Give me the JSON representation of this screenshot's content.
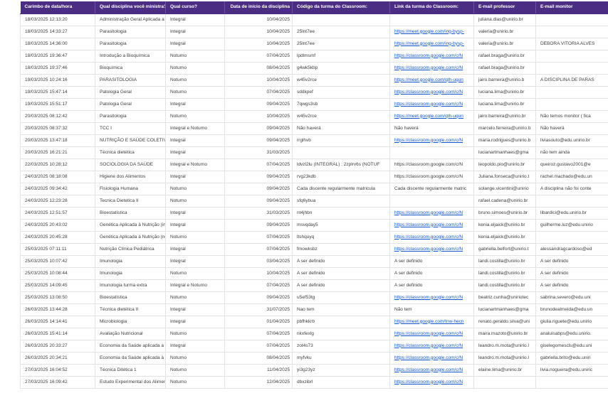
{
  "theme": {
    "bg": "#ffffff",
    "header_bg": "#4b2e83",
    "header_separator": "#6b51a3",
    "header_text": "#ffffff",
    "body_text": "#3d3d3d",
    "link": "#1155cc",
    "grid": "#e3e3e3"
  },
  "table": {
    "columns": [
      {
        "key": "timestamp",
        "label": "Carimbo de data/hora",
        "align": "left"
      },
      {
        "key": "disciplina",
        "label": "Qual disciplina você ministra?",
        "align": "left"
      },
      {
        "key": "curso",
        "label": "Qual curso?",
        "align": "left"
      },
      {
        "key": "inicio",
        "label": "Data de início da disciplina",
        "align": "right"
      },
      {
        "key": "codigo",
        "label": "Código da turma do Classroom:",
        "align": "left"
      },
      {
        "key": "link",
        "label": "Link da turma do Classroom:",
        "align": "left"
      },
      {
        "key": "email_prof",
        "label": "E-mail professor",
        "align": "left"
      },
      {
        "key": "email_monitor",
        "label": "E-mail monitor",
        "align": "left"
      }
    ],
    "rows": [
      {
        "timestamp": "18/03/2025 12:13:20",
        "disciplina": "Administração Geral Aplicada a Nutr",
        "curso": "Integral",
        "inicio": "10/04/2025",
        "codigo": "",
        "link": "",
        "link_is_url": false,
        "email_prof": "juliana.dias@unirio.br",
        "email_monitor": ""
      },
      {
        "timestamp": "18/03/2025 14:33:27",
        "disciplina": "Parasitologia",
        "curso": "Integral",
        "inicio": "10/04/2025",
        "codigo": "25lnt7ee",
        "link": "https://meet.google.com/ing-bysp-",
        "link_is_url": true,
        "email_prof": "valeria@unirio.br",
        "email_monitor": ""
      },
      {
        "timestamp": "18/03/2025 14:36:00",
        "disciplina": "Parasitologia",
        "curso": "Integral",
        "inicio": "10/04/2025",
        "codigo": "25lnt7ee",
        "link": "https://meet.google.com/ing-bysp-",
        "link_is_url": true,
        "email_prof": "valeria@unirio.br",
        "email_monitor": "DEBORA VITORIA ALVES"
      },
      {
        "timestamp": "18/03/2025 19:36:47",
        "disciplina": "Introdução a Bioquímica",
        "curso": "Noturno",
        "inicio": "07/04/2025",
        "codigo": "lpdlmsmf",
        "link": "https://classroom.google.com/c/N",
        "link_is_url": true,
        "email_prof": "rafael.braga@unirio.br",
        "email_monitor": ""
      },
      {
        "timestamp": "18/03/2025 19:37:46",
        "disciplina": "Bioquímica",
        "curso": "Noturno",
        "inicio": "08/04/2025",
        "codigo": "g4wk5kbp",
        "link": "https://classroom.google.com/c/N",
        "link_is_url": true,
        "email_prof": "rafael.braga@unirio.br",
        "email_monitor": ""
      },
      {
        "timestamp": "19/03/2025 10:24:16",
        "disciplina": "PARASITOLOGIA",
        "curso": "Noturno",
        "inicio": "10/04/2025",
        "codigo": "w45v2rce",
        "link": "https://meet.google.com/qth-uqun",
        "link_is_url": true,
        "email_prof": "jairo.barreira@unirio.b",
        "email_monitor": "A DISCIPLINA DE PARAS"
      },
      {
        "timestamp": "19/03/2025 15:47:14",
        "disciplina": "Patologia Geral",
        "curso": "Noturno",
        "inicio": "07/04/2025",
        "codigo": "sddkpef",
        "link": "https://classroom.google.com/c/N",
        "link_is_url": true,
        "email_prof": "luciana.lima@unirio.br",
        "email_monitor": ""
      },
      {
        "timestamp": "19/03/2025 15:51:17",
        "disciplina": "Patologia Geral",
        "curso": "Integral",
        "inicio": "09/04/2025",
        "codigo": "7qwgs3sb",
        "link": "https://classroom.google.com/c/N",
        "link_is_url": true,
        "email_prof": "luciana.lima@unirio.br",
        "email_monitor": ""
      },
      {
        "timestamp": "20/03/2025 08:12:42",
        "disciplina": "Parasitologia",
        "curso": "Noturno",
        "inicio": "10/04/2025",
        "codigo": "w45v2rce",
        "link": "https://meet.google.com/qth-uqun",
        "link_is_url": true,
        "email_prof": "jairo.barreira@unirio.br",
        "email_monitor": "Não temos monitor ( fica"
      },
      {
        "timestamp": "20/03/2025 08:37:32",
        "disciplina": "TCC I",
        "curso": "Integral e Noturno",
        "inicio": "09/04/2025",
        "codigo": "Não haverá",
        "link": "Não haverá",
        "link_is_url": false,
        "email_prof": "marcelo.ferreira@unirio.b",
        "email_monitor": "Não haverá"
      },
      {
        "timestamp": "20/03/2025 13:47:18",
        "disciplina": "NUTRIÇÃO E SAÚDE COLETIVA",
        "curso": "Integral",
        "inicio": "09/04/2025",
        "codigo": "rrglhvb",
        "link": "https://classroom.google.com/c/N",
        "link_is_url": true,
        "email_prof": "maria.rodrigues@unirio.b",
        "email_monitor": "liviasouto@edu.unirio.br"
      },
      {
        "timestamp": "20/03/2025 16:21:21",
        "disciplina": "Técnica dietética",
        "curso": "Integral",
        "inicio": "31/03/2025",
        "codigo": "",
        "link": "",
        "link_is_url": false,
        "email_prof": "lucianartmanhaes@gma",
        "email_monitor": "não tem ainda"
      },
      {
        "timestamp": "22/03/2025 10:28:12",
        "disciplina": "SOCIOLOGIA DA SAÚDE",
        "curso": "Integral e Noturno",
        "inicio": "07/04/2025",
        "codigo": "ldvzl2lu (INTEGRAL) ; 2zplrv6s (NOTUF",
        "link": "https://classroom.google.com/c/N",
        "link_is_url": false,
        "email_prof": "leopoldo.pio@unirio.br",
        "email_monitor": "queiroz.gustavo2001@e"
      },
      {
        "timestamp": "24/03/2025 08:18:08",
        "disciplina": "Higiene dos Alimentos",
        "curso": "Integral",
        "inicio": "09/04/2025",
        "codigo": "rvg23kdb",
        "link": "https://classroom.google.com/c/N",
        "link_is_url": false,
        "email_prof": "Juliana.fonseca@unirio.t",
        "email_monitor": "rachel.machado@edu.un"
      },
      {
        "timestamp": "24/03/2025 09:34:42",
        "disciplina": "Fisiologia Humana",
        "curso": "Noturno",
        "inicio": "09/04/2025",
        "codigo": "Cada discente regularmente matricula",
        "link": "Cada discente regularmente matric",
        "link_is_url": false,
        "email_prof": "solange.vicentini@unirio",
        "email_monitor": "A disciplina não foi conte"
      },
      {
        "timestamp": "24/03/2025 12:23:28",
        "disciplina": "Tecnica Dietetica II",
        "curso": "Noturno",
        "inicio": "09/04/2025",
        "codigo": "sfq6ybua",
        "link": "",
        "link_is_url": false,
        "email_prof": "rafael.cadena@unirio.br",
        "email_monitor": ""
      },
      {
        "timestamp": "24/03/2025 12:51:57",
        "disciplina": "Bioestatística",
        "curso": "Integral",
        "inicio": "31/03/2025",
        "codigo": "nt4jhbn",
        "link": "https://classroom.google.com/c/N",
        "link_is_url": true,
        "email_prof": "bruno.simoes@unirio.br",
        "email_monitor": "libardici@edu.unirio.br"
      },
      {
        "timestamp": "24/03/2025 20:43:02",
        "disciplina": "Genética Aplicada à Nutrição (integ",
        "curso": "Integral",
        "inicio": "09/04/2025",
        "codigo": "msvqday5",
        "link": "https://classroom.google.com/c/N",
        "link_is_url": true,
        "email_prof": "kenia.eljaick@unirio.br",
        "email_monitor": "guilherme.luz@edu.unirio"
      },
      {
        "timestamp": "24/03/2025 20:45:28",
        "disciplina": "Genética Aplicada à Nutrição (notur",
        "curso": "Noturno",
        "inicio": "07/04/2025",
        "codigo": "ltshquyq",
        "link": "https://classroom.google.com/c/N",
        "link_is_url": true,
        "email_prof": "kenia.eljaick@unirio.br",
        "email_monitor": ""
      },
      {
        "timestamp": "25/03/2025 07:11:11",
        "disciplina": "Nutrição Clínica Pediátrica",
        "curso": "Integral",
        "inicio": "07/04/2025",
        "codigo": "fmowksbz",
        "link": "https://classroom.google.com/c/N",
        "link_is_url": true,
        "email_prof": "gabriella.belfort@unirio.t",
        "email_monitor": "alessandragcardoso@ed"
      },
      {
        "timestamp": "25/03/2025 10:07:42",
        "disciplina": "Imunologia",
        "curso": "Integral",
        "inicio": "03/04/2025",
        "codigo": "A ser definido",
        "link": "A ser definido",
        "link_is_url": false,
        "email_prof": "landi.costilla@unirio.br",
        "email_monitor": "A ser definido"
      },
      {
        "timestamp": "25/03/2025 10:08:44",
        "disciplina": "Imunologia",
        "curso": "Noturno",
        "inicio": "10/04/2025",
        "codigo": "A ser definido",
        "link": "A ser definido",
        "link_is_url": false,
        "email_prof": "landi.costilla@unirio.br",
        "email_monitor": "A ser definido"
      },
      {
        "timestamp": "25/03/2025 14:09:45",
        "disciplina": "Imunologia  turma extra",
        "curso": "Integral e Noturno",
        "inicio": "07/04/2025",
        "codigo": "A ser definido",
        "link": "A ser definido",
        "link_is_url": false,
        "email_prof": "landi.costilla@unirio.br",
        "email_monitor": "A ser definido"
      },
      {
        "timestamp": "25/03/2025 13:08:50",
        "disciplina": "Bioestatística",
        "curso": "Noturno",
        "inicio": "09/04/2025",
        "codigo": "u5ef53tg",
        "link": "https://classroom.google.com/c/N",
        "link_is_url": true,
        "email_prof": "beatriz.cunha@uniriotec",
        "email_monitor": "sabrina.severo@edu.uni"
      },
      {
        "timestamp": "26/03/2025 13:44:28",
        "disciplina": "Técnica dietética II",
        "curso": "Integral",
        "inicio": "31/07/2025",
        "codigo": "Nao tem",
        "link": "Não tem",
        "link_is_url": false,
        "email_prof": "lucianartmanhaes@gma",
        "email_monitor": "brunodealmeida@edu.un"
      },
      {
        "timestamp": "26/03/2025 14:14:41",
        "disciplina": "Microbiologia",
        "curso": "Integral",
        "inicio": "01/04/2025",
        "codigo": "pbfhkkrb",
        "link": "https://meet.google.com/tnw-hecn",
        "link_is_url": true,
        "email_prof": "renato.geraldo.silva@uni",
        "email_monitor": "giulia.riguete@edu.unirio"
      },
      {
        "timestamp": "26/03/2025 15:41:14",
        "disciplina": "Avaliação Nutricional",
        "curso": "Noturno",
        "inicio": "07/04/2025",
        "codigo": "nkxfexlg",
        "link": "https://classroom.google.com/c/N",
        "link_is_url": true,
        "email_prof": "maira.mazoto@unirio.br",
        "email_monitor": "analuisabps@edu.unirio."
      },
      {
        "timestamp": "26/03/2025 20:33:27",
        "disciplina": "Economia da Saúde aplicada a Nutri",
        "curso": "Integral",
        "inicio": "07/04/2025",
        "codigo": "zot4s73",
        "link": "https://classroom.google.com/c/N",
        "link_is_url": true,
        "email_prof": "leandro.m.mota@unirio.l",
        "email_monitor": "giselegomescls@edu.uni"
      },
      {
        "timestamp": "26/03/2025 20:34:21",
        "disciplina": "Economia da Saúde aplicada à Nutri",
        "curso": "Noturno",
        "inicio": "08/04/2025",
        "codigo": "myfvku",
        "link": "https://classroom.google.com/c/N",
        "link_is_url": true,
        "email_prof": "leandro.m.mota@unirio.l",
        "email_monitor": "gabriella.brito@edu.uniri"
      },
      {
        "timestamp": "27/03/2025 16:04:52",
        "disciplina": "Técnica Ditética 1",
        "curso": "Noturno",
        "inicio": "11/04/2025",
        "codigo": "yi3g23yz",
        "link": "https://classroom.google.com/c/N",
        "link_is_url": true,
        "email_prof": "elaine.lima@unirio.br",
        "email_monitor": "livia.nogueira@edu.uniric"
      },
      {
        "timestamp": "27/03/2025 16:09:42",
        "disciplina": "Estudo Experimental dos Alimentos",
        "curso": "Noturno",
        "inicio": "12/04/2025",
        "codigo": "dbxzibrl",
        "link": "https://classroom.google.com/c/N",
        "link_is_url": true,
        "email_prof": "",
        "email_monitor": ""
      }
    ]
  }
}
